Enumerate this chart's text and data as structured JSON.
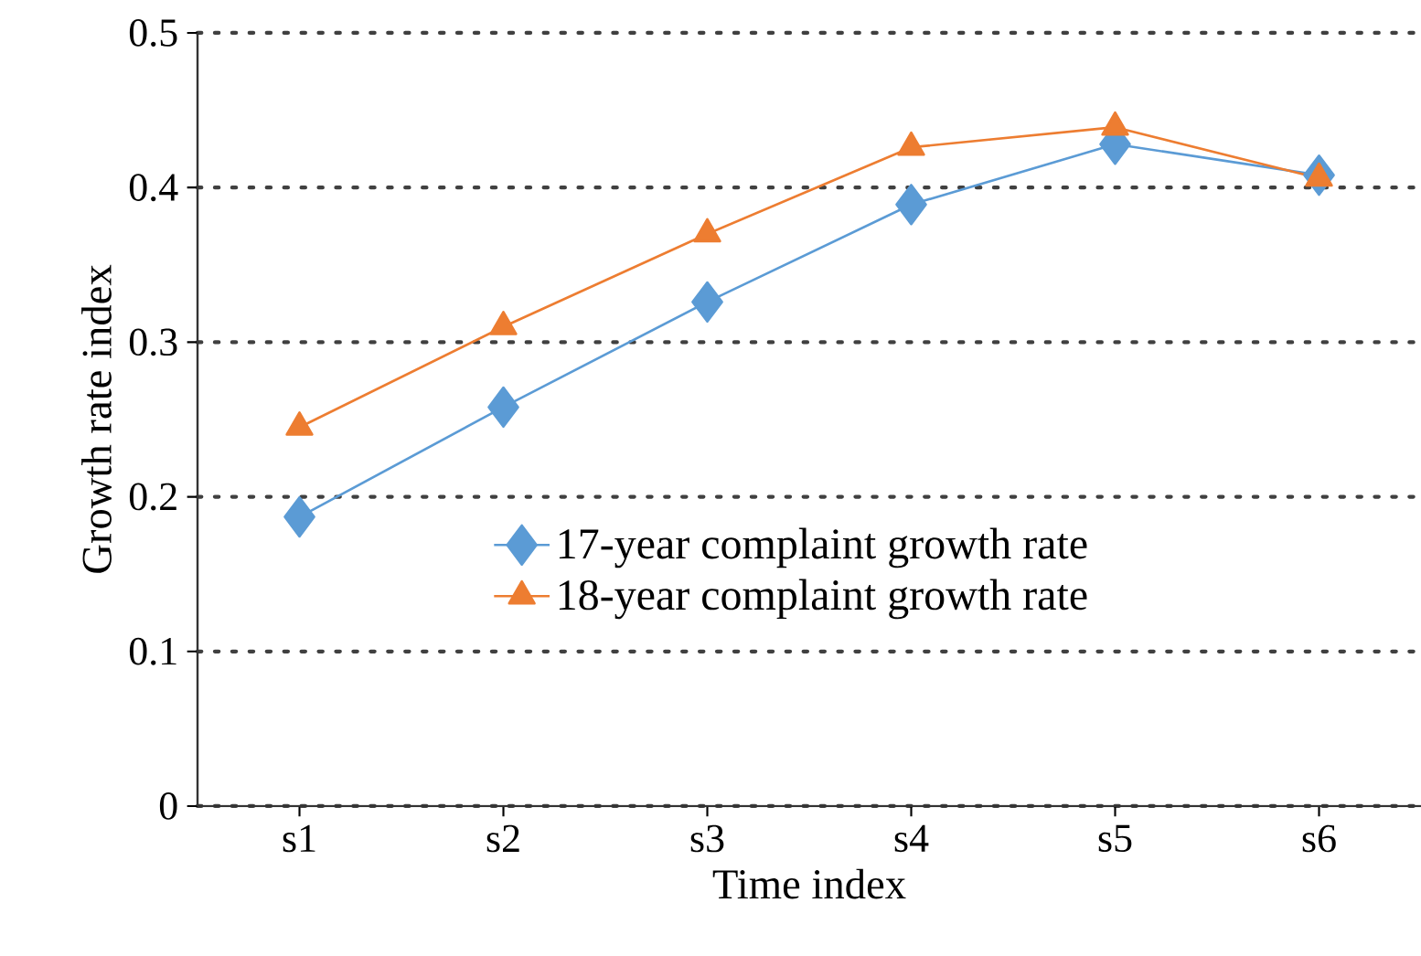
{
  "chart_data": {
    "type": "line",
    "xlabel": "Time index",
    "ylabel": "Growth rate index",
    "categories": [
      "s1",
      "s2",
      "s3",
      "s4",
      "s5",
      "s6"
    ],
    "series": [
      {
        "name": "17-year complaint growth rate",
        "color": "#5b9bd5",
        "marker": "diamond",
        "values": [
          0.187,
          0.258,
          0.326,
          0.389,
          0.428,
          0.408
        ]
      },
      {
        "name": "18-year complaint growth rate",
        "color": "#ed7d31",
        "marker": "triangle",
        "values": [
          0.245,
          0.31,
          0.37,
          0.426,
          0.439,
          0.406
        ]
      }
    ],
    "ylim": [
      0,
      0.5
    ],
    "yticks": [
      0,
      0.1,
      0.2,
      0.3,
      0.4,
      0.5
    ],
    "grid": "y",
    "legend": "bottom right"
  }
}
